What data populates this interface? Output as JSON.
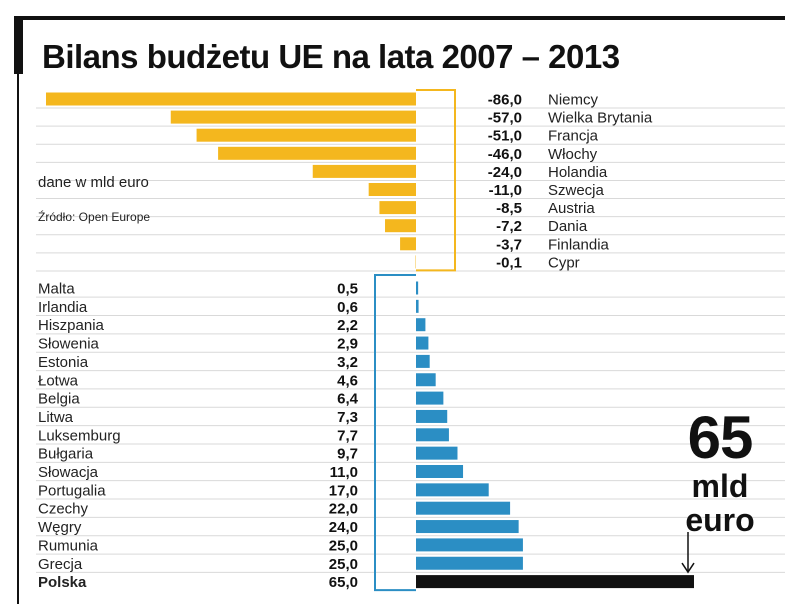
{
  "chart_data": {
    "type": "bar",
    "title": "Bilans budżetu UE na lata 2007 – 2013",
    "unit_note": "dane w mld euro",
    "source_note": "Źródło: Open Europe",
    "colors": {
      "negative": "#f4b71e",
      "positive": "#2b8ec4",
      "highlight": "#111111"
    },
    "net_contributors": [
      {
        "country": "Niemcy",
        "value": -86.0,
        "label": "-86,0"
      },
      {
        "country": "Wielka Brytania",
        "value": -57.0,
        "label": "-57,0"
      },
      {
        "country": "Francja",
        "value": -51.0,
        "label": "-51,0"
      },
      {
        "country": "Włochy",
        "value": -46.0,
        "label": "-46,0"
      },
      {
        "country": "Holandia",
        "value": -24.0,
        "label": "-24,0"
      },
      {
        "country": "Szwecja",
        "value": -11.0,
        "label": "-11,0"
      },
      {
        "country": "Austria",
        "value": -8.5,
        "label": "-8,5"
      },
      {
        "country": "Dania",
        "value": -7.2,
        "label": "-7,2"
      },
      {
        "country": "Finlandia",
        "value": -3.7,
        "label": "-3,7"
      },
      {
        "country": "Cypr",
        "value": -0.1,
        "label": "-0,1"
      }
    ],
    "net_beneficiaries": [
      {
        "country": "Malta",
        "value": 0.5,
        "label": "0,5"
      },
      {
        "country": "Irlandia",
        "value": 0.6,
        "label": "0,6"
      },
      {
        "country": "Hiszpania",
        "value": 2.2,
        "label": "2,2"
      },
      {
        "country": "Słowenia",
        "value": 2.9,
        "label": "2,9"
      },
      {
        "country": "Estonia",
        "value": 3.2,
        "label": "3,2"
      },
      {
        "country": "Łotwa",
        "value": 4.6,
        "label": "4,6"
      },
      {
        "country": "Belgia",
        "value": 6.4,
        "label": "6,4"
      },
      {
        "country": "Litwa",
        "value": 7.3,
        "label": "7,3"
      },
      {
        "country": "Luksemburg",
        "value": 7.7,
        "label": "7,7"
      },
      {
        "country": "Bułgaria",
        "value": 9.7,
        "label": "9,7"
      },
      {
        "country": "Słowacja",
        "value": 11.0,
        "label": "11,0"
      },
      {
        "country": "Portugalia",
        "value": 17.0,
        "label": "17,0"
      },
      {
        "country": "Czechy",
        "value": 22.0,
        "label": "22,0"
      },
      {
        "country": "Węgry",
        "value": 24.0,
        "label": "24,0"
      },
      {
        "country": "Rumunia",
        "value": 25.0,
        "label": "25,0"
      },
      {
        "country": "Grecja",
        "value": 25.0,
        "label": "25,0"
      },
      {
        "country": "Polska",
        "value": 65.0,
        "label": "65,0",
        "highlight": true
      }
    ],
    "callout": {
      "value": "65",
      "unit_line1": "mld",
      "unit_line2": "euro"
    }
  }
}
